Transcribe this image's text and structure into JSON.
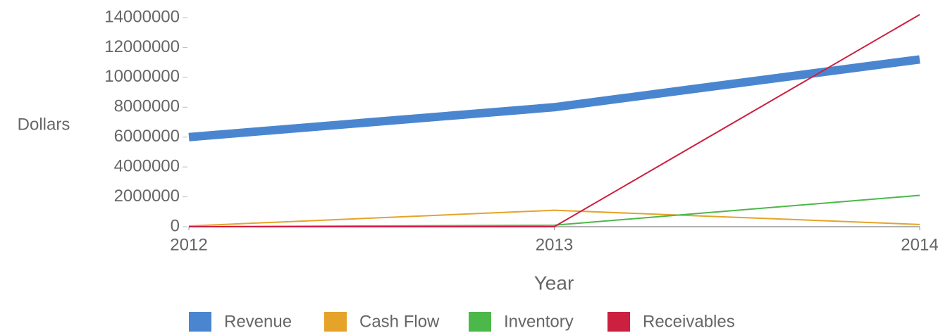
{
  "chart_data": {
    "type": "line",
    "x": [
      2012,
      2013,
      2014
    ],
    "xlim": [
      2012,
      2014
    ],
    "xticks": [
      2012,
      2013,
      2014
    ],
    "ylim": [
      0,
      14000000
    ],
    "yticks": [
      0,
      2000000,
      4000000,
      6000000,
      8000000,
      10000000,
      12000000,
      14000000
    ],
    "xlabel": "Year",
    "ylabel": "Dollars",
    "grid": false,
    "legend": "bottom",
    "series": [
      {
        "name": "Revenue",
        "color": "#4a86d0",
        "width": 12,
        "values": [
          6000000,
          8000000,
          11200000
        ]
      },
      {
        "name": "Cash Flow",
        "color": "#e5a32a",
        "width": 2,
        "values": [
          50000,
          1100000,
          150000
        ]
      },
      {
        "name": "Inventory",
        "color": "#4cb84a",
        "width": 2,
        "values": [
          0,
          100000,
          2100000
        ]
      },
      {
        "name": "Receivables",
        "color": "#cc2040",
        "width": 2,
        "values": [
          0,
          0,
          14200000
        ]
      }
    ]
  }
}
